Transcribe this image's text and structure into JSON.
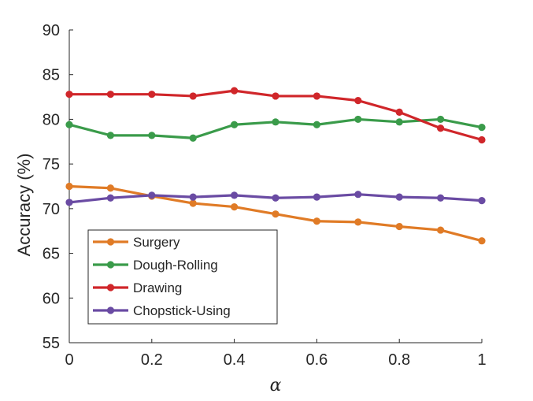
{
  "chart_data": {
    "type": "line",
    "title": "",
    "xlabel": "α",
    "ylabel": "Accuracy (%)",
    "xlim": [
      0,
      1
    ],
    "ylim": [
      55,
      90
    ],
    "x_ticks": [
      0,
      0.2,
      0.4,
      0.6,
      0.8,
      1
    ],
    "x_tick_labels": [
      "0",
      "0.2",
      "0.4",
      "0.6",
      "0.8",
      "1"
    ],
    "y_ticks": [
      55,
      60,
      65,
      70,
      75,
      80,
      85,
      90
    ],
    "y_tick_labels": [
      "55",
      "60",
      "65",
      "70",
      "75",
      "80",
      "85",
      "90"
    ],
    "grid": false,
    "legend_position": "bottom-left",
    "x": [
      0,
      0.1,
      0.2,
      0.3,
      0.4,
      0.5,
      0.6,
      0.7,
      0.8,
      0.9,
      1.0
    ],
    "series": [
      {
        "name": "Surgery",
        "color": "#E07B26",
        "values": [
          72.5,
          72.3,
          71.4,
          70.6,
          70.2,
          69.4,
          68.6,
          68.5,
          68.0,
          67.6,
          66.4
        ]
      },
      {
        "name": "Dough-Rolling",
        "color": "#3A9B4A",
        "values": [
          79.4,
          78.2,
          78.2,
          77.9,
          79.4,
          79.7,
          79.4,
          80.0,
          79.7,
          80.0,
          79.1
        ]
      },
      {
        "name": "Drawing",
        "color": "#D0262A",
        "values": [
          82.8,
          82.8,
          82.8,
          82.6,
          83.2,
          82.6,
          82.6,
          82.1,
          80.8,
          79.0,
          77.7
        ]
      },
      {
        "name": "Chopstick-Using",
        "color": "#6A4BA3",
        "values": [
          70.7,
          71.2,
          71.5,
          71.3,
          71.5,
          71.2,
          71.3,
          71.6,
          71.3,
          71.2,
          70.9
        ]
      }
    ]
  }
}
